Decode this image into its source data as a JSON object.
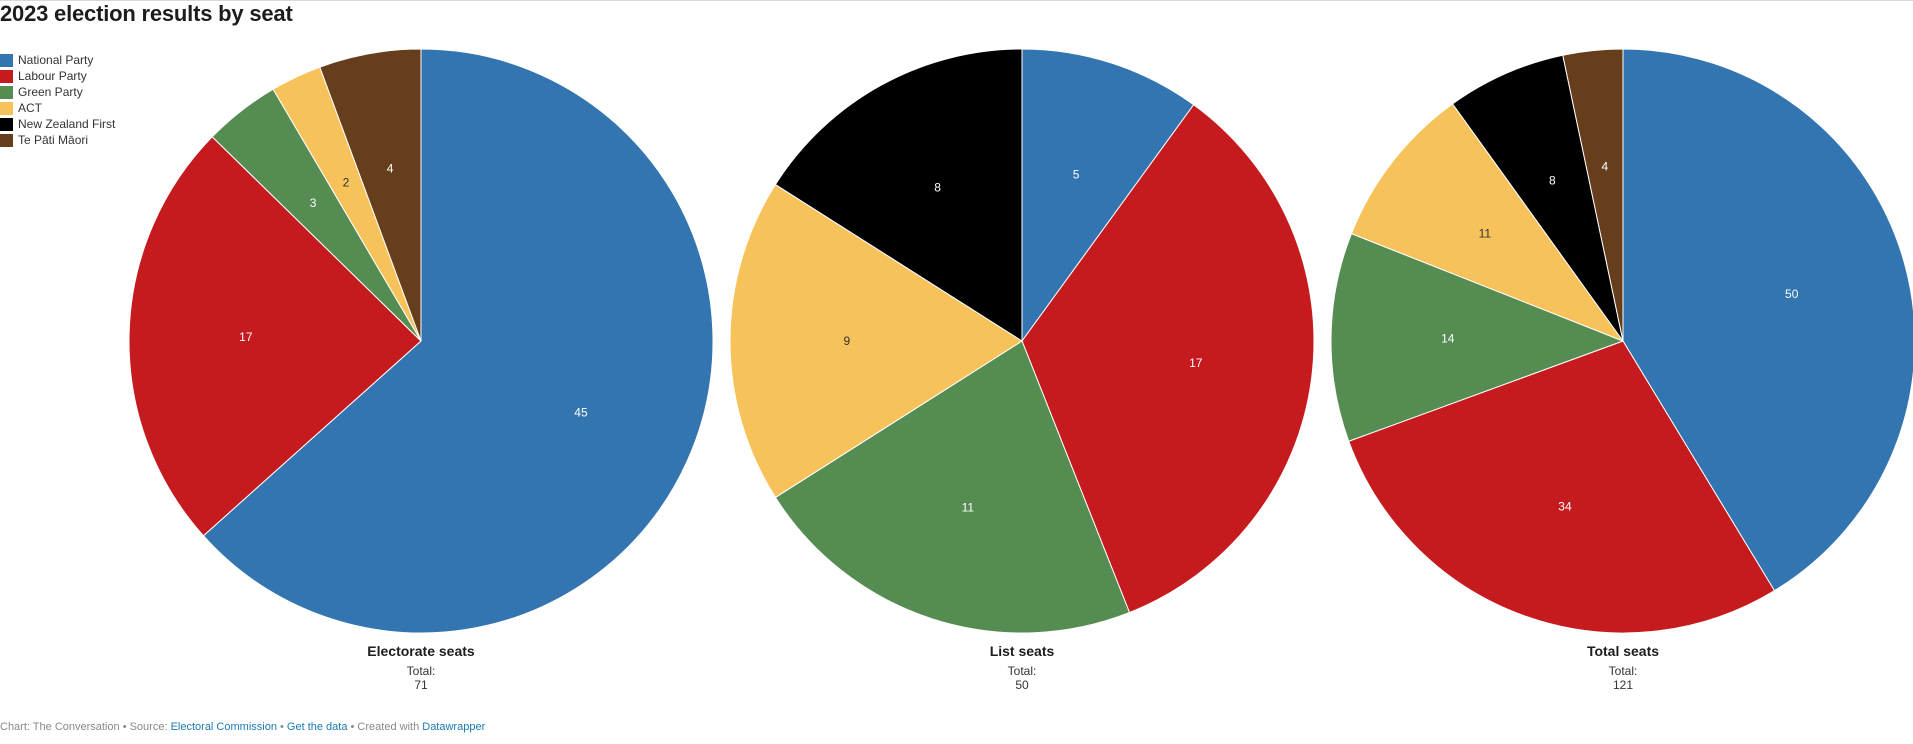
{
  "title": "2023 election results by seat",
  "chart_data": {
    "type": "pie",
    "legend_position": "top-left",
    "categories": [
      "National Party",
      "Labour Party",
      "Green Party",
      "ACT",
      "New Zealand First",
      "Te Pāti Māori"
    ],
    "colors": {
      "National Party": "#3275b0",
      "Labour Party": "#c61b1e",
      "Green Party": "#558c52",
      "ACT": "#f7c25a",
      "New Zealand First": "#000000",
      "Te Pāti Māori": "#663e1b"
    },
    "pies": [
      {
        "title": "Electorate seats",
        "total_label": "Total:",
        "total": "71",
        "values": [
          45,
          17,
          3,
          0,
          2,
          4
        ],
        "order": [
          "National Party",
          "Labour Party",
          "Green Party",
          "New Zealand First",
          "ACT",
          "Te Pāti Māori"
        ],
        "slices": [
          {
            "name": "National Party",
            "value": 45
          },
          {
            "name": "Labour Party",
            "value": 17
          },
          {
            "name": "Green Party",
            "value": 3
          },
          {
            "name": "ACT",
            "value": 2
          },
          {
            "name": "Te Pāti Māori",
            "value": 4
          }
        ]
      },
      {
        "title": "List seats",
        "total_label": "Total:",
        "total": "50",
        "slices": [
          {
            "name": "National Party",
            "value": 5
          },
          {
            "name": "Labour Party",
            "value": 17
          },
          {
            "name": "Green Party",
            "value": 11
          },
          {
            "name": "ACT",
            "value": 9
          },
          {
            "name": "New Zealand First",
            "value": 8
          }
        ]
      },
      {
        "title": "Total seats",
        "total_label": "Total:",
        "total": "121",
        "slices": [
          {
            "name": "National Party",
            "value": 50
          },
          {
            "name": "Labour Party",
            "value": 34
          },
          {
            "name": "Green Party",
            "value": 14
          },
          {
            "name": "ACT",
            "value": 11
          },
          {
            "name": "New Zealand First",
            "value": 8
          },
          {
            "name": "Te Pāti Māori",
            "value": 4
          }
        ]
      }
    ]
  },
  "footer": {
    "prefix": "Chart: The Conversation • Source: ",
    "source_link": "Electoral Commission",
    "sep1": " • ",
    "data_link": "Get the data",
    "sep2": " • Created with ",
    "tool_link": "Datawrapper"
  }
}
